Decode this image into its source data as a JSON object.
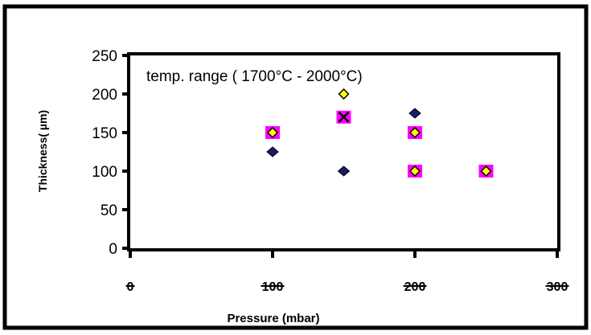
{
  "chart_data": {
    "type": "scatter",
    "title": "",
    "annotation": "temp. range ( 1700°C - 2000°C)",
    "xlabel": "Pressure (mbar)",
    "ylabel": "Thickness( µm)",
    "xlim": [
      0,
      300
    ],
    "ylim": [
      0,
      250
    ],
    "xticks": [
      0,
      100,
      200,
      300
    ],
    "yticks": [
      0,
      50,
      100,
      150,
      200,
      250
    ],
    "grid": false,
    "legend": "none",
    "series": [
      {
        "marker": "diamond-navy",
        "color": "#1a1a6e",
        "x": [
          100,
          150,
          150,
          200
        ],
        "y": [
          125,
          100,
          170,
          175
        ]
      },
      {
        "marker": "square-magenta",
        "color": "#ff00ff",
        "x": [
          100,
          150,
          200,
          200,
          250
        ],
        "y": [
          150,
          170,
          150,
          100,
          100
        ]
      },
      {
        "marker": "x-black",
        "color": "#000000",
        "x": [
          150
        ],
        "y": [
          170
        ]
      },
      {
        "marker": "diamond-yellow",
        "color": "#ffff00",
        "x": [
          100,
          150,
          200,
          200,
          250
        ],
        "y": [
          150,
          200,
          150,
          100,
          100
        ]
      }
    ]
  }
}
